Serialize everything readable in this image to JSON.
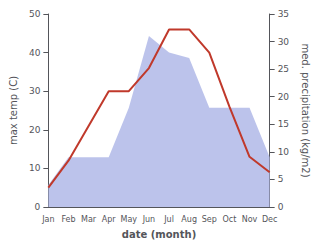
{
  "chart_data": {
    "type": "line",
    "xlabel": "date (month)",
    "ylabel": "max temp (C)",
    "y2label": "med. precipitation (kg/m2)",
    "categories": [
      "Jan",
      "Feb",
      "Mar",
      "Apr",
      "May",
      "Jun",
      "Jul",
      "Aug",
      "Sep",
      "Oct",
      "Nov",
      "Dec"
    ],
    "series": [
      {
        "type": "area",
        "axis": "y2",
        "color": "#b0b8e8",
        "values": [
          4,
          9,
          9,
          9,
          18,
          31,
          28,
          27,
          18,
          18,
          18,
          9
        ]
      },
      {
        "type": "line",
        "color": "#c0392b",
        "values": [
          5,
          12,
          21,
          30,
          30,
          36,
          46,
          46,
          40,
          26,
          13,
          9
        ]
      }
    ],
    "ylim": [
      0,
      50
    ],
    "yticks": [
      0,
      10,
      20,
      30,
      40,
      50
    ],
    "y2lim": [
      0,
      35
    ],
    "y2ticks": [
      0,
      5,
      10,
      15,
      20,
      25,
      30,
      35
    ],
    "grid": false
  }
}
